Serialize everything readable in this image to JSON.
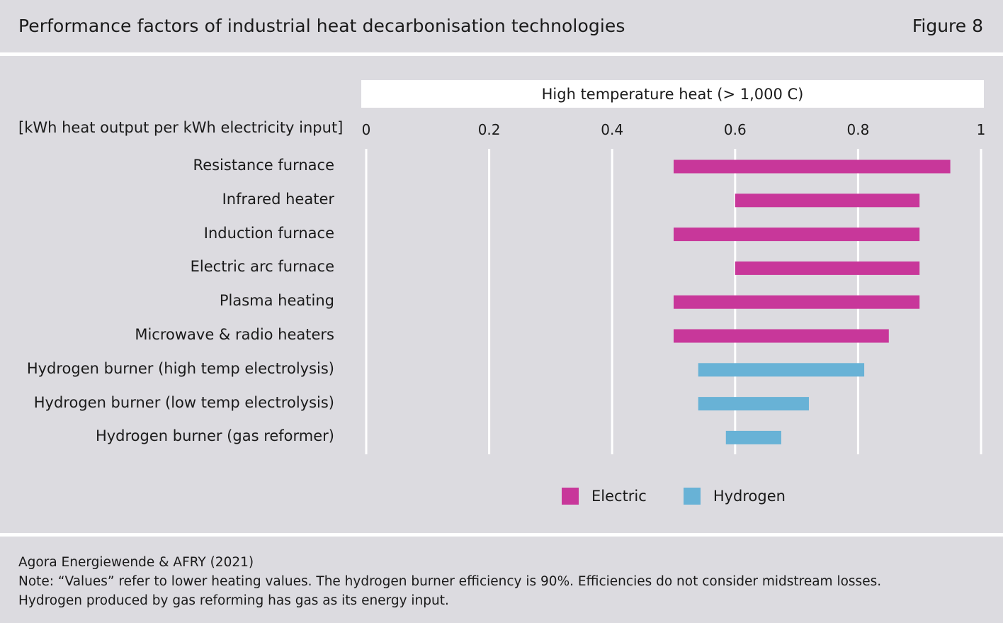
{
  "header": {
    "title": "Performance factors of industrial heat decarbonisation technologies",
    "figure": "Figure 8"
  },
  "chart_data": {
    "type": "bar",
    "orientation": "horizontal-range",
    "title": "High temperature heat (> 1,000 C)",
    "unit_label": "[kWh heat output per kWh electricity input]",
    "xlim": [
      0,
      1
    ],
    "ticks": [
      "0",
      "0.2",
      "0.4",
      "0.6",
      "0.8",
      "1"
    ],
    "tick_values": [
      0,
      0.2,
      0.4,
      0.6,
      0.8,
      1
    ],
    "grid": true,
    "legend_position": "bottom",
    "colors": {
      "Electric": "#c8379a",
      "Hydrogen": "#68b2d6"
    },
    "series": [
      {
        "name": "Electric",
        "color": "#c8379a"
      },
      {
        "name": "Hydrogen",
        "color": "#68b2d6"
      }
    ],
    "categories": [
      "Resistance furnace",
      "Infrared heater",
      "Induction furnace",
      "Electric arc furnace",
      "Plasma heating",
      "Microwave & radio heaters",
      "Hydrogen burner (high temp electrolysis)",
      "Hydrogen burner (low temp electrolysis)",
      "Hydrogen burner (gas reformer)"
    ],
    "ranges": [
      {
        "category": "Resistance furnace",
        "series": "Electric",
        "min": 0.5,
        "max": 0.95
      },
      {
        "category": "Infrared heater",
        "series": "Electric",
        "min": 0.6,
        "max": 0.9
      },
      {
        "category": "Induction furnace",
        "series": "Electric",
        "min": 0.5,
        "max": 0.9
      },
      {
        "category": "Electric arc furnace",
        "series": "Electric",
        "min": 0.6,
        "max": 0.9
      },
      {
        "category": "Plasma heating",
        "series": "Electric",
        "min": 0.5,
        "max": 0.9
      },
      {
        "category": "Microwave & radio heaters",
        "series": "Electric",
        "min": 0.5,
        "max": 0.85
      },
      {
        "category": "Hydrogen burner (high temp electrolysis)",
        "series": "Hydrogen",
        "min": 0.54,
        "max": 0.81
      },
      {
        "category": "Hydrogen burner (low temp electrolysis)",
        "series": "Hydrogen",
        "min": 0.54,
        "max": 0.72
      },
      {
        "category": "Hydrogen burner (gas reformer)",
        "series": "Hydrogen",
        "min": 0.585,
        "max": 0.675
      }
    ]
  },
  "footer": {
    "source": "Agora Energiewende & AFRY (2021)",
    "note_line1": "Note: “Values” refer to lower heating values. The hydrogen burner efficiency is 90%. Efficiencies do not consider midstream losses.",
    "note_line2": "Hydrogen produced by gas reforming has gas as its energy input."
  }
}
